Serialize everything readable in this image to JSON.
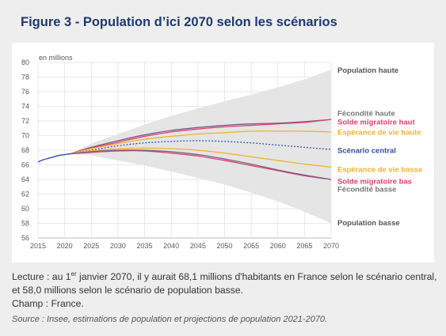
{
  "figure_title": "Figure 3 - Population d’ici 2070 selon les scénarios",
  "caption": {
    "line1_pre": "Lecture : au 1",
    "line1_sup": "er",
    "line1_post": " janvier 2070, il y aurait 68,1 millions d'habitants en France selon le scénario central, et 58,0 millions selon le scénario de population basse.",
    "field": "Champ : France.",
    "source": "Source : Insee, estimations de population et projections de population 2021-2070."
  },
  "colors": {
    "central": "#2e4fa8",
    "fecondite": "#7a5a8c",
    "solde_migratoire": "#e0406e",
    "esperance_vie": "#f2b233",
    "band": "#e5e5e5",
    "grid": "#e3e3e3"
  },
  "chart_data": {
    "type": "line",
    "ylabel": "en millions",
    "ylim": [
      56,
      80
    ],
    "xlim": [
      2015,
      2070
    ],
    "yticks": [
      56,
      58,
      60,
      62,
      64,
      66,
      68,
      70,
      72,
      74,
      76,
      78,
      80
    ],
    "xticks": [
      2015,
      2020,
      2025,
      2030,
      2035,
      2040,
      2045,
      2050,
      2055,
      2060,
      2065,
      2070
    ],
    "grid": true,
    "legend": "right-end labels",
    "observed": {
      "x": [
        2015,
        2016,
        2017,
        2018,
        2019,
        2020,
        2021
      ],
      "values": [
        66.4,
        66.7,
        66.9,
        67.1,
        67.3,
        67.4,
        67.5
      ]
    },
    "band": {
      "name": "",
      "x": [
        2021,
        2025,
        2030,
        2035,
        2040,
        2045,
        2050,
        2055,
        2060,
        2065,
        2070
      ],
      "upper": [
        67.5,
        68.9,
        70.2,
        71.5,
        72.7,
        73.7,
        74.7,
        75.6,
        76.6,
        77.7,
        79.0
      ],
      "lower": [
        67.5,
        67.3,
        66.6,
        65.9,
        65.1,
        64.2,
        63.3,
        62.2,
        61.0,
        59.6,
        58.0
      ]
    },
    "x": [
      2021,
      2025,
      2030,
      2035,
      2040,
      2045,
      2050,
      2055,
      2060,
      2065,
      2070
    ],
    "series": [
      {
        "name": "Fécondité haute",
        "color_key": "fecondite",
        "values": [
          67.5,
          68.4,
          69.3,
          70.1,
          70.7,
          71.1,
          71.4,
          71.6,
          71.7,
          71.9,
          72.2
        ]
      },
      {
        "name": "Solde migratoire haut",
        "color_key": "solde_migratoire",
        "values": [
          67.5,
          68.3,
          69.1,
          69.9,
          70.5,
          70.9,
          71.2,
          71.4,
          71.6,
          71.8,
          72.2
        ]
      },
      {
        "name": "Espérance de vie haute",
        "color_key": "esperance_vie",
        "values": [
          67.5,
          68.2,
          68.9,
          69.5,
          69.9,
          70.2,
          70.4,
          70.6,
          70.6,
          70.6,
          70.5
        ]
      },
      {
        "name": "Scénario central",
        "color_key": "central",
        "dashed": true,
        "values": [
          67.5,
          68.0,
          68.6,
          69.0,
          69.2,
          69.3,
          69.2,
          69.0,
          68.7,
          68.4,
          68.1
        ]
      },
      {
        "name": "Espérance de vie basse",
        "color_key": "esperance_vie",
        "values": [
          67.5,
          67.9,
          68.2,
          68.3,
          68.2,
          68.0,
          67.6,
          67.1,
          66.6,
          66.1,
          65.7
        ]
      },
      {
        "name": "Solde migratoire bas",
        "color_key": "solde_migratoire",
        "values": [
          67.5,
          67.7,
          67.9,
          67.9,
          67.6,
          67.2,
          66.6,
          65.9,
          65.2,
          64.5,
          64.0
        ]
      },
      {
        "name": "Fécondité basse",
        "color_key": "fecondite",
        "values": [
          67.5,
          67.8,
          68.0,
          68.0,
          67.8,
          67.4,
          66.8,
          66.1,
          65.3,
          64.6,
          64.0
        ]
      }
    ],
    "labels": [
      {
        "text": "Population haute",
        "y": 79.0,
        "color_key": "label_dark"
      },
      {
        "text": "Fécondité haute",
        "y": 73.1,
        "color_key": "label_grey"
      },
      {
        "text": "Solde migratoire haut",
        "y": 71.9,
        "color_key": "solde_migratoire"
      },
      {
        "text": "Espérance de vie haute",
        "y": 70.5,
        "color_key": "esperance_vie"
      },
      {
        "text": "Scénario central",
        "y": 68.0,
        "color_key": "central"
      },
      {
        "text": "Espérance de vie basse",
        "y": 65.4,
        "color_key": "esperance_vie"
      },
      {
        "text": "Solde migratoire bas",
        "y": 63.8,
        "color_key": "solde_migratoire"
      },
      {
        "text": "Fécondité basse",
        "y": 62.7,
        "color_key": "label_grey"
      },
      {
        "text": "Population basse",
        "y": 58.1,
        "color_key": "label_dark"
      }
    ],
    "label_colors": {
      "label_dark": "#555555",
      "label_grey": "#777777"
    }
  }
}
